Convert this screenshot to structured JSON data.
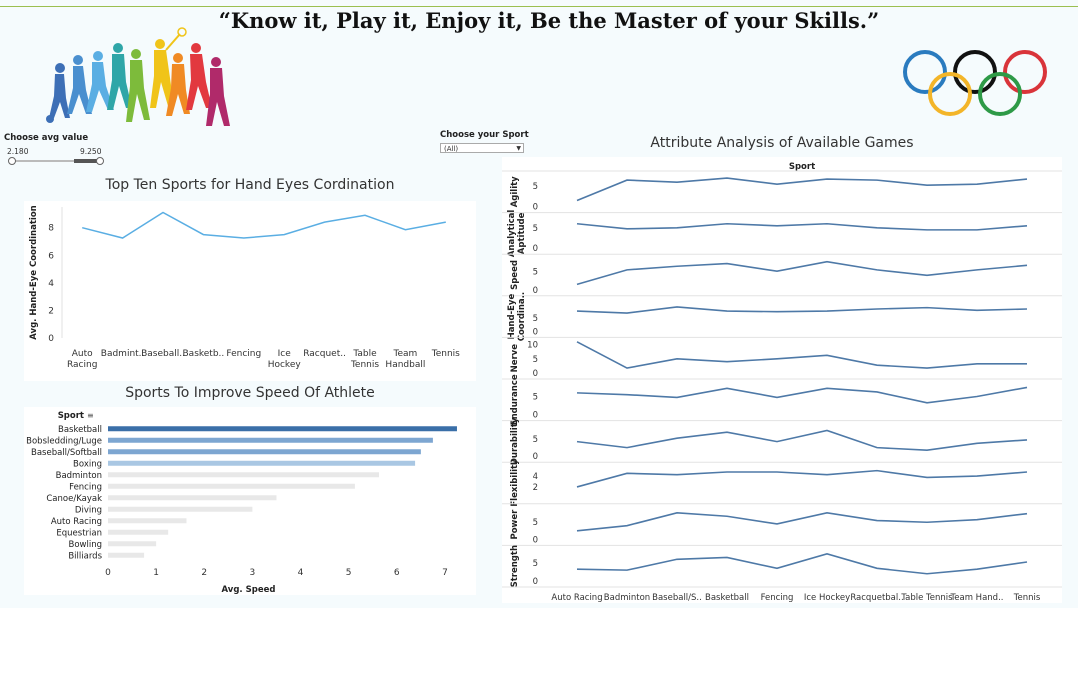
{
  "header": {
    "quote": "“Know it, Play it, Enjoy it, Be the Master of your Skills.”"
  },
  "icons": {
    "logo": "sports-silhouettes-logo",
    "rings": "olympic-rings"
  },
  "colors": {
    "line": "#5aaee3",
    "attr_line": "#4e79a7",
    "bar_dark": "#3a6fa8",
    "bar_mid": "#7da6d1",
    "bar_light": "#a9c7e3",
    "bar_gray": "#e8e8e8"
  },
  "filters": {
    "avg_value": {
      "title": "Choose  avg value",
      "min": "2.180",
      "max": "9.250"
    },
    "sport": {
      "title": "Choose your Sport",
      "selected": "(All)"
    }
  },
  "chart_data": [
    {
      "type": "line",
      "title": "Top Ten Sports for Hand Eyes Cordination",
      "ylabel": "Avg. Hand-Eye Coordination",
      "xlabel": "",
      "categories": [
        [
          "Auto",
          "Racing"
        ],
        [
          "Badmint.."
        ],
        [
          "Baseball.."
        ],
        [
          "Basketb.."
        ],
        [
          "Fencing"
        ],
        [
          "Ice",
          "Hockey"
        ],
        [
          "Racquet.."
        ],
        [
          "Table",
          "Tennis"
        ],
        [
          "Team",
          "Handball"
        ],
        [
          "Tennis"
        ]
      ],
      "values": [
        8.0,
        7.25,
        9.1,
        7.5,
        7.25,
        7.5,
        8.4,
        8.9,
        7.85,
        8.4
      ],
      "yticks": [
        0,
        2,
        4,
        6,
        8
      ],
      "ylim": [
        0,
        9.5
      ]
    },
    {
      "type": "bar",
      "orientation": "horizontal",
      "title": "Sports To Improve Speed Of Athlete",
      "header": "Sport",
      "xlabel": "Avg. Speed",
      "categories": [
        "Basketball",
        "Bobsledding/Luge",
        "Baseball/Softball",
        "Boxing",
        "Badminton",
        "Fencing",
        "Canoe/Kayak",
        "Diving",
        "Auto Racing",
        "Equestrian",
        "Bowling",
        "Billiards"
      ],
      "values": [
        7.25,
        6.75,
        6.5,
        6.38,
        5.63,
        5.13,
        3.5,
        3.0,
        1.63,
        1.25,
        1.0,
        0.75
      ],
      "xticks": [
        0,
        1,
        2,
        3,
        4,
        5,
        6,
        7
      ],
      "xlim": [
        0,
        7.5
      ]
    },
    {
      "type": "line",
      "title": "Attribute Analysis of Available Games",
      "header": "Sport",
      "categories": [
        "Auto Racing",
        "Badminton",
        "Baseball/S..",
        "Basketball",
        "Fencing",
        "Ice Hockey",
        "Racquetbal..",
        "Table Tennis",
        "Team Hand..",
        "Tennis"
      ],
      "series": [
        {
          "name": "Agility",
          "values": [
            1.5,
            6.5,
            6.0,
            7.0,
            5.5,
            6.75,
            6.5,
            5.25,
            5.5,
            6.75
          ],
          "ticks": [
            "0",
            "5"
          ],
          "ymax": 8
        },
        {
          "name": "Analytical Aptitude",
          "values": [
            6.0,
            4.75,
            5.0,
            6.0,
            5.5,
            6.0,
            5.0,
            4.5,
            4.5,
            5.5
          ],
          "ticks": [
            "0",
            "5"
          ],
          "ymax": 8
        },
        {
          "name": "Speed",
          "values": [
            1.5,
            5.5,
            6.5,
            7.25,
            5.13,
            7.75,
            5.5,
            4.0,
            5.5,
            6.75
          ],
          "ticks": [
            "0",
            "5"
          ],
          "ymax": 9
        },
        {
          "name": "Hand-Eye Coordina..",
          "values": [
            7.5,
            6.75,
            9.0,
            7.5,
            7.25,
            7.5,
            8.25,
            8.75,
            7.75,
            8.25
          ],
          "ticks": [
            "0",
            "5"
          ],
          "ymax": 12
        },
        {
          "name": "Nerve",
          "values": [
            11.0,
            1.75,
            5.0,
            4.0,
            5.0,
            6.25,
            2.75,
            1.75,
            3.25,
            3.25
          ],
          "ticks": [
            "0",
            "5",
            "10"
          ],
          "ymax": 11.5
        },
        {
          "name": "Endurance",
          "values": [
            6.0,
            5.5,
            4.75,
            7.25,
            4.75,
            7.25,
            6.25,
            3.25,
            5.0,
            7.5
          ],
          "ticks": [
            "0",
            "5"
          ],
          "ymax": 9
        },
        {
          "name": "Durability",
          "values": [
            4.25,
            2.5,
            5.25,
            7.0,
            4.25,
            7.5,
            2.5,
            1.75,
            3.75,
            4.75
          ],
          "ticks": [
            "0",
            "5"
          ],
          "ymax": 9.5
        },
        {
          "name": "Flexibility",
          "values": [
            2.0,
            4.5,
            4.25,
            4.75,
            4.75,
            4.25,
            5.0,
            3.75,
            4.0,
            4.75
          ],
          "ticks": [
            "2",
            "4"
          ],
          "ymin": 0,
          "ymax": 6
        },
        {
          "name": "Power",
          "values": [
            2.5,
            4.0,
            7.75,
            6.75,
            4.5,
            7.75,
            5.5,
            5.0,
            5.75,
            7.5
          ],
          "ticks": [
            "0",
            "5"
          ],
          "ymax": 9.5
        },
        {
          "name": "Strength",
          "values": [
            3.25,
            3.0,
            6.0,
            6.5,
            3.5,
            7.5,
            3.5,
            2.0,
            3.25,
            5.25
          ],
          "ticks": [
            "0",
            "5"
          ],
          "ymax": 9
        }
      ]
    }
  ]
}
